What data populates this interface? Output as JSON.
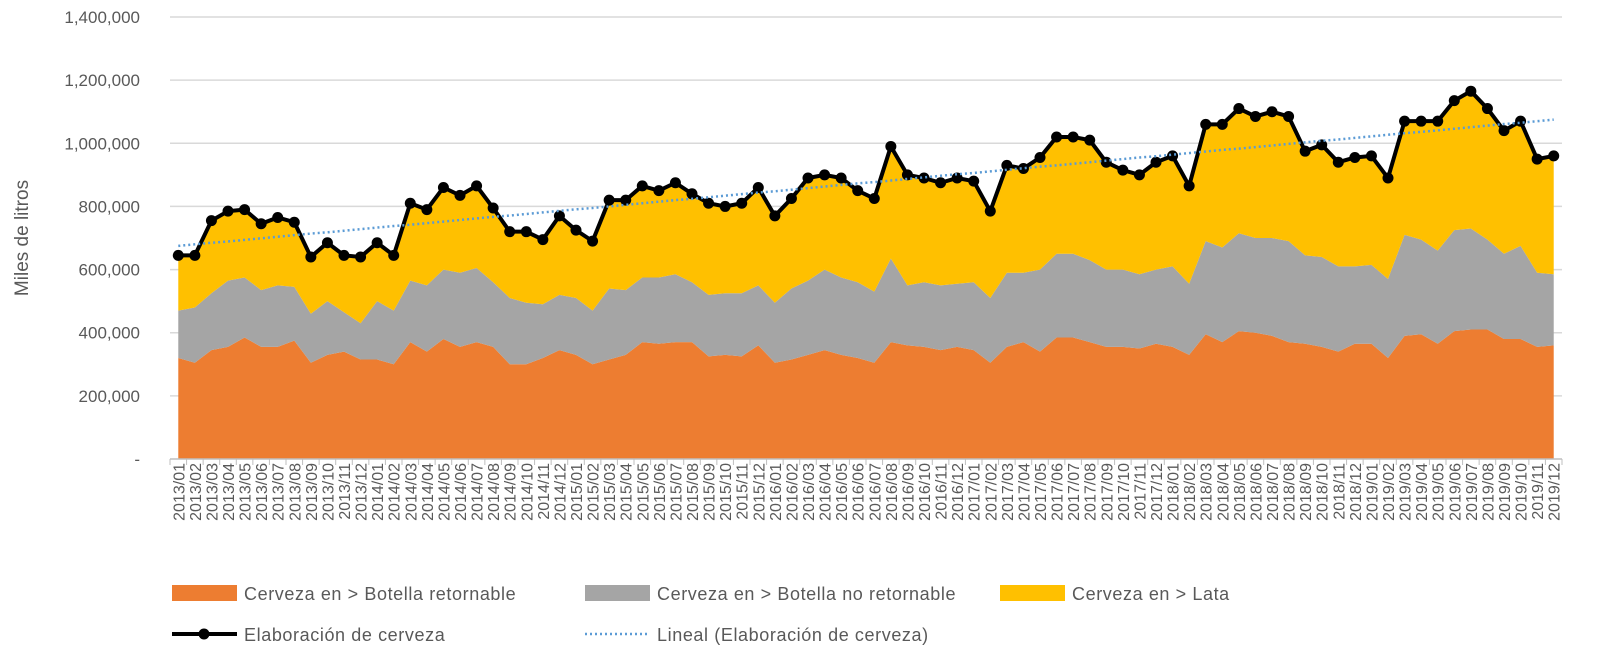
{
  "chart_data": {
    "type": "stacked-area-line",
    "y_axis_label": "Miles de litros",
    "categories": [
      "2013/01",
      "2013/02",
      "2013/03",
      "2013/04",
      "2013/05",
      "2013/06",
      "2013/07",
      "2013/08",
      "2013/09",
      "2013/10",
      "2013/11",
      "2013/12",
      "2014/01",
      "2014/02",
      "2014/03",
      "2014/04",
      "2014/05",
      "2014/06",
      "2014/07",
      "2014/08",
      "2014/09",
      "2014/10",
      "2014/11",
      "2014/12",
      "2015/01",
      "2015/02",
      "2015/03",
      "2015/04",
      "2015/05",
      "2015/06",
      "2015/07",
      "2015/08",
      "2015/09",
      "2015/10",
      "2015/11",
      "2015/12",
      "2016/01",
      "2016/02",
      "2016/03",
      "2016/04",
      "2016/05",
      "2016/06",
      "2016/07",
      "2016/08",
      "2016/09",
      "2016/10",
      "2016/11",
      "2016/12",
      "2017/01",
      "2017/02",
      "2017/03",
      "2017/04",
      "2017/05",
      "2017/06",
      "2017/07",
      "2017/08",
      "2017/09",
      "2017/10",
      "2017/11",
      "2017/12",
      "2018/01",
      "2018/02",
      "2018/03",
      "2018/04",
      "2018/05",
      "2018/06",
      "2018/07",
      "2018/08",
      "2018/09",
      "2018/10",
      "2018/11",
      "2018/12",
      "2019/01",
      "2019/02",
      "2019/03",
      "2019/04",
      "2019/05",
      "2019/06",
      "2019/07",
      "2019/08",
      "2019/09",
      "2019/10",
      "2019/11",
      "2019/12"
    ],
    "series": [
      {
        "name": "Cerveza en > Botella retornable",
        "kind": "area",
        "color": "#ed7d31",
        "values": [
          320000,
          305000,
          345000,
          355000,
          385000,
          355000,
          355000,
          375000,
          305000,
          330000,
          340000,
          315000,
          315000,
          300000,
          370000,
          340000,
          380000,
          355000,
          370000,
          355000,
          300000,
          300000,
          320000,
          345000,
          330000,
          300000,
          315000,
          330000,
          370000,
          365000,
          370000,
          370000,
          325000,
          330000,
          325000,
          360000,
          305000,
          315000,
          330000,
          345000,
          330000,
          320000,
          305000,
          370000,
          360000,
          355000,
          345000,
          355000,
          345000,
          305000,
          355000,
          370000,
          340000,
          385000,
          385000,
          370000,
          355000,
          355000,
          350000,
          365000,
          355000,
          330000,
          395000,
          370000,
          405000,
          400000,
          390000,
          370000,
          365000,
          355000,
          340000,
          365000,
          365000,
          320000,
          390000,
          395000,
          365000,
          405000,
          410000,
          410000,
          380000,
          380000,
          355000,
          360000
        ]
      },
      {
        "name": "Cerveza en > Botella no retornable",
        "kind": "area",
        "color": "#a5a5a5",
        "values": [
          150000,
          175000,
          180000,
          210000,
          190000,
          180000,
          195000,
          170000,
          155000,
          170000,
          125000,
          115000,
          185000,
          170000,
          195000,
          210000,
          220000,
          235000,
          235000,
          205000,
          210000,
          195000,
          170000,
          175000,
          180000,
          170000,
          225000,
          205000,
          205000,
          210000,
          215000,
          190000,
          195000,
          195000,
          200000,
          190000,
          190000,
          225000,
          235000,
          255000,
          245000,
          240000,
          225000,
          265000,
          190000,
          205000,
          205000,
          200000,
          215000,
          205000,
          235000,
          220000,
          260000,
          265000,
          265000,
          260000,
          245000,
          245000,
          235000,
          235000,
          255000,
          225000,
          295000,
          300000,
          310000,
          300000,
          310000,
          320000,
          280000,
          285000,
          270000,
          245000,
          250000,
          250000,
          320000,
          300000,
          295000,
          320000,
          320000,
          285000,
          270000,
          295000,
          235000,
          225000
        ]
      },
      {
        "name": "Cerveza en > Lata",
        "kind": "area",
        "color": "#ffc000",
        "values": [
          175000,
          165000,
          230000,
          220000,
          215000,
          210000,
          215000,
          205000,
          180000,
          185000,
          180000,
          210000,
          185000,
          175000,
          245000,
          240000,
          260000,
          245000,
          260000,
          235000,
          210000,
          225000,
          205000,
          250000,
          215000,
          220000,
          280000,
          285000,
          290000,
          275000,
          290000,
          280000,
          290000,
          275000,
          285000,
          310000,
          275000,
          285000,
          325000,
          300000,
          315000,
          290000,
          295000,
          355000,
          350000,
          330000,
          325000,
          335000,
          320000,
          275000,
          340000,
          330000,
          355000,
          370000,
          370000,
          380000,
          340000,
          315000,
          315000,
          340000,
          350000,
          310000,
          370000,
          390000,
          395000,
          385000,
          400000,
          395000,
          330000,
          355000,
          330000,
          345000,
          345000,
          320000,
          360000,
          375000,
          410000,
          410000,
          435000,
          415000,
          390000,
          395000,
          360000,
          375000
        ]
      },
      {
        "name": "Elaboración de cerveza",
        "kind": "line",
        "color": "#000000",
        "values": [
          645000,
          645000,
          755000,
          785000,
          790000,
          745000,
          765000,
          750000,
          640000,
          685000,
          645000,
          640000,
          685000,
          645000,
          810000,
          790000,
          860000,
          835000,
          865000,
          795000,
          720000,
          720000,
          695000,
          770000,
          725000,
          690000,
          820000,
          820000,
          865000,
          850000,
          875000,
          840000,
          810000,
          800000,
          810000,
          860000,
          770000,
          825000,
          890000,
          900000,
          890000,
          850000,
          825000,
          990000,
          900000,
          890000,
          875000,
          890000,
          880000,
          785000,
          930000,
          920000,
          955000,
          1020000,
          1020000,
          1010000,
          940000,
          915000,
          900000,
          940000,
          960000,
          865000,
          1060000,
          1060000,
          1110000,
          1085000,
          1100000,
          1085000,
          975000,
          995000,
          940000,
          955000,
          960000,
          890000,
          1070000,
          1070000,
          1070000,
          1135000,
          1165000,
          1110000,
          1040000,
          1070000,
          950000,
          960000
        ]
      },
      {
        "name": "Lineal (Elaboración de cerveza)",
        "kind": "trend",
        "color": "#5b9bd5",
        "values": [
          675000,
          680000,
          685000,
          689000,
          694000,
          699000,
          704000,
          709000,
          714000,
          718000,
          723000,
          728000,
          733000,
          738000,
          742000,
          747000,
          752000,
          757000,
          762000,
          767000,
          771000,
          776000,
          781000,
          786000,
          791000,
          795000,
          800000,
          805000,
          810000,
          815000,
          820000,
          824000,
          829000,
          834000,
          839000,
          844000,
          848000,
          853000,
          858000,
          863000,
          868000,
          873000,
          877000,
          882000,
          887000,
          892000,
          897000,
          902000,
          906000,
          911000,
          916000,
          921000,
          926000,
          930000,
          935000,
          940000,
          945000,
          950000,
          955000,
          959000,
          964000,
          969000,
          974000,
          979000,
          983000,
          988000,
          993000,
          998000,
          1003000,
          1008000,
          1012000,
          1017000,
          1022000,
          1027000,
          1032000,
          1036000,
          1041000,
          1046000,
          1051000,
          1056000,
          1061000,
          1065000,
          1070000,
          1075000
        ]
      }
    ],
    "ylim": [
      0,
      1400000
    ],
    "yticks": [
      {
        "value": 0,
        "label": "-"
      },
      {
        "value": 200000,
        "label": "200,000"
      },
      {
        "value": 400000,
        "label": "400,000"
      },
      {
        "value": 600000,
        "label": "600,000"
      },
      {
        "value": 800000,
        "label": "800,000"
      },
      {
        "value": 1000000,
        "label": "1,000,000"
      },
      {
        "value": 1200000,
        "label": "1,200,000"
      },
      {
        "value": 1400000,
        "label": "1,400,000"
      }
    ],
    "grid": true,
    "legend": "bottom"
  }
}
